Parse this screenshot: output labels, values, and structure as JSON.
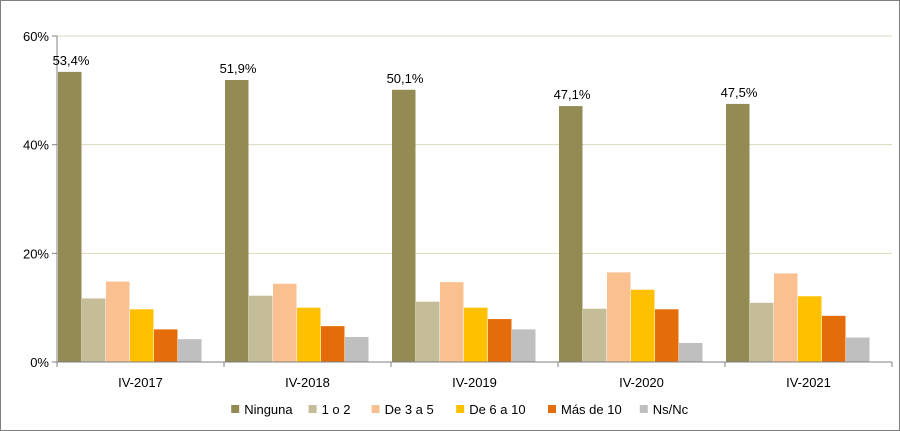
{
  "chart_data": {
    "type": "bar",
    "title": "",
    "xlabel": "",
    "ylabel": "",
    "ylim": [
      0,
      60
    ],
    "y_ticks": [
      0,
      20,
      40,
      60
    ],
    "y_tick_labels": [
      "0%",
      "20%",
      "40%",
      "60%"
    ],
    "grid": "horizontal",
    "legend_position": "bottom",
    "categories": [
      "IV-2017",
      "IV-2018",
      "IV-2019",
      "IV-2020",
      "IV-2021"
    ],
    "series": [
      {
        "name": "Ninguna",
        "color": "#948a54",
        "values": [
          53.4,
          51.9,
          50.1,
          47.1,
          47.5
        ],
        "data_labels": [
          "53,4%",
          "51,9%",
          "50,1%",
          "47,1%",
          "47,5%"
        ]
      },
      {
        "name": "1 o 2",
        "color": "#c4bd97",
        "values": [
          11.7,
          12.2,
          11.1,
          9.8,
          10.9
        ]
      },
      {
        "name": "De 3 a 5",
        "color": "#fac090",
        "values": [
          14.8,
          14.4,
          14.7,
          16.5,
          16.3
        ]
      },
      {
        "name": "De 6 a 10",
        "color": "#ffc000",
        "values": [
          9.7,
          10.0,
          10.0,
          13.3,
          12.1
        ]
      },
      {
        "name": "Más de 10",
        "color": "#e46c0a",
        "values": [
          6.0,
          6.6,
          7.9,
          9.7,
          8.5
        ]
      },
      {
        "name": "Ns/Nc",
        "color": "#bfbfbf",
        "values": [
          4.2,
          4.6,
          6.0,
          3.5,
          4.5
        ]
      }
    ]
  }
}
